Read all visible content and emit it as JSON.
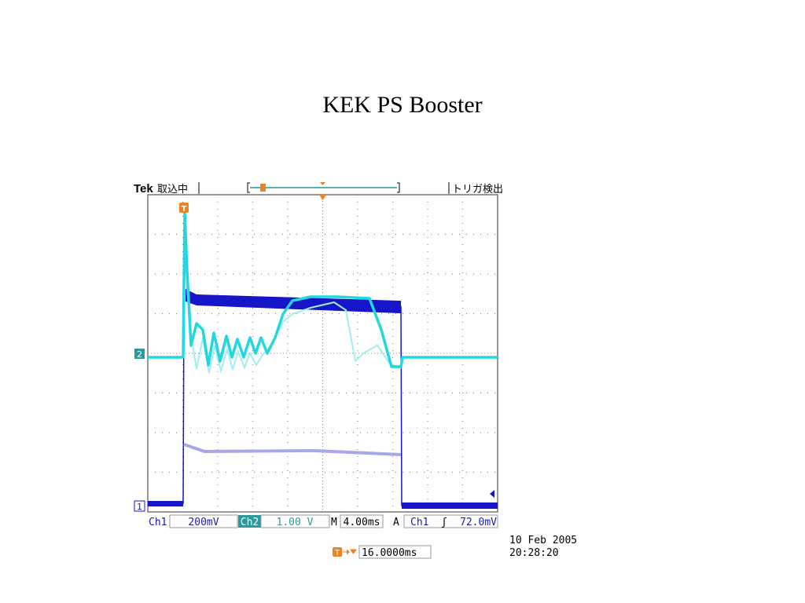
{
  "title": "KEK PS Booster",
  "scope": {
    "header": {
      "brand": "Tek",
      "status": "取込中",
      "trigger_status": "トリガ検出"
    },
    "markers": {
      "trigger": "T",
      "ch2": "2",
      "ch1": "1"
    },
    "readout": {
      "ch1_label": "Ch1",
      "ch1_scale": "200mV",
      "ch2_label": "Ch2",
      "ch2_scale": "1.00 V",
      "time_label": "M",
      "time_scale": "4.00ms",
      "trigger_label": "A",
      "trigger_source": "Ch1",
      "trigger_slope": "ʃ",
      "trigger_level": "72.0mV"
    },
    "position": {
      "marker": "T",
      "value": "16.0000ms"
    },
    "timestamp": {
      "date": "10 Feb 2005",
      "time": "20:28:20"
    }
  }
}
